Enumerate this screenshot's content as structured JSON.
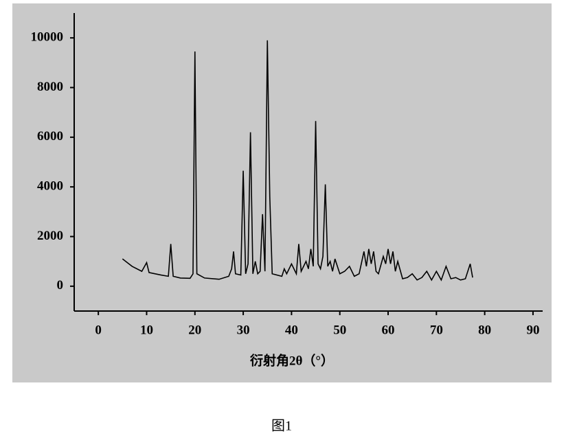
{
  "chart_data": {
    "type": "line",
    "x_label": "衍射角2θ（°）",
    "caption": "图1",
    "xlim": [
      -5,
      92
    ],
    "ylim": [
      -1000,
      11000
    ],
    "xticks": [
      0,
      10,
      20,
      30,
      40,
      50,
      60,
      70,
      80,
      90
    ],
    "yticks": [
      0,
      2000,
      4000,
      6000,
      8000,
      10000
    ],
    "series": [
      {
        "color": "#000000",
        "x": [
          5,
          7,
          9,
          10,
          10.5,
          13,
          14.5,
          15,
          15.5,
          17,
          19,
          19.6,
          20,
          20.4,
          22,
          25,
          27,
          27.6,
          28,
          28.4,
          29.5,
          30,
          30.5,
          31,
          31.5,
          32,
          32.5,
          33,
          33.5,
          34,
          34.5,
          35,
          35.5,
          36,
          38,
          38.5,
          39,
          40,
          41,
          41.5,
          42,
          43,
          43.5,
          44,
          44.5,
          45,
          45.5,
          46,
          46.5,
          47,
          47.5,
          48,
          48.5,
          49,
          50,
          51,
          52,
          53,
          54,
          55,
          55.5,
          56,
          56.5,
          57,
          57.5,
          58,
          59,
          59.5,
          60,
          60.5,
          61,
          61.5,
          62,
          63,
          64,
          65,
          66,
          67,
          68,
          69,
          70,
          71,
          72,
          73,
          74,
          75,
          76,
          77,
          77.5
        ],
        "values": [
          1100,
          800,
          600,
          950,
          550,
          450,
          400,
          1700,
          400,
          330,
          320,
          500,
          9450,
          500,
          330,
          280,
          400,
          700,
          1400,
          500,
          450,
          4650,
          500,
          900,
          6200,
          500,
          1000,
          500,
          600,
          2900,
          600,
          9900,
          3600,
          500,
          400,
          700,
          500,
          900,
          500,
          1700,
          600,
          1000,
          700,
          1500,
          800,
          6650,
          900,
          700,
          1200,
          4100,
          800,
          1000,
          600,
          1100,
          500,
          600,
          800,
          400,
          500,
          1400,
          800,
          1500,
          900,
          1400,
          600,
          500,
          1200,
          900,
          1500,
          900,
          1400,
          600,
          1000,
          300,
          350,
          500,
          250,
          350,
          600,
          250,
          600,
          250,
          800,
          300,
          350,
          250,
          300,
          900,
          350
        ]
      }
    ]
  }
}
